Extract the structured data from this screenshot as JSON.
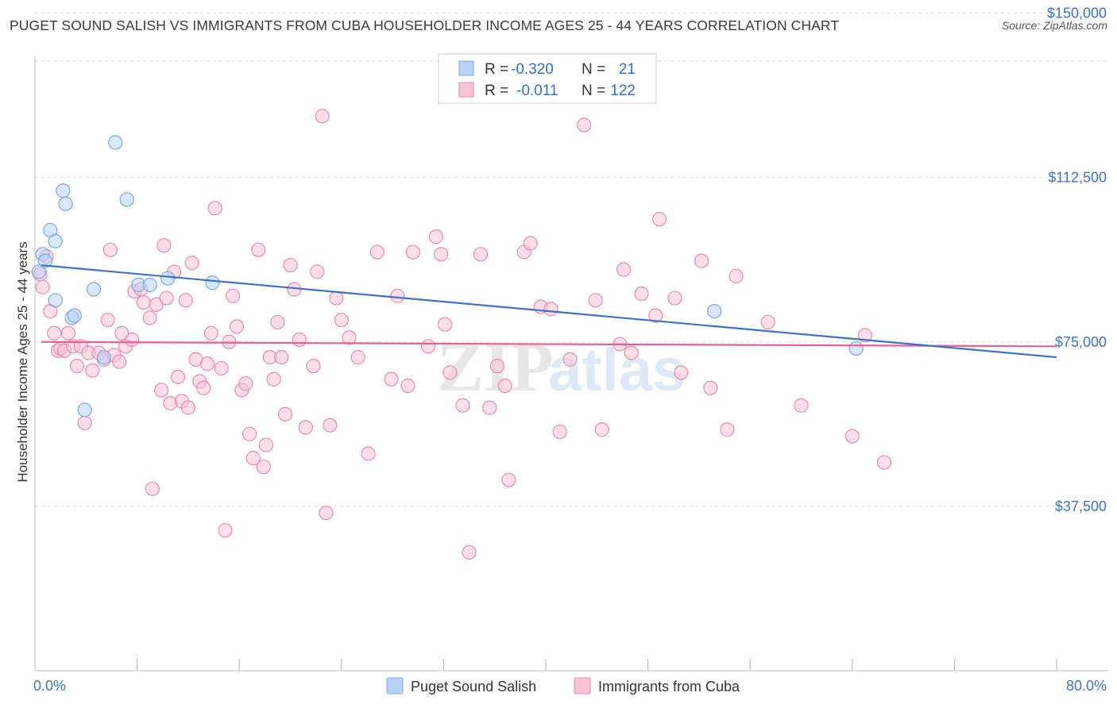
{
  "title": "PUGET SOUND SALISH VS IMMIGRANTS FROM CUBA HOUSEHOLDER INCOME AGES 25 - 44 YEARS CORRELATION CHART",
  "source": "Source: ZipAtlas.com",
  "watermark": {
    "part1": "ZIP",
    "part2": "atlas"
  },
  "colors": {
    "blue_fill": "#b9d3f5",
    "blue_stroke": "#7ca6e0",
    "blue_line": "#3a73c9",
    "pink_fill": "#f8c3d5",
    "pink_stroke": "#e98aab",
    "pink_line": "#e8608e",
    "axis_text": "#3b74c6",
    "grid": "#dddddd"
  },
  "legend": {
    "rows": [
      {
        "r_label": "R =",
        "r_value": "-0.320",
        "n_label": "N =",
        "n_value": "21"
      },
      {
        "r_label": "R =",
        "r_value": "-0.011",
        "n_label": "N =",
        "n_value": "122"
      }
    ]
  },
  "chart_data": {
    "type": "scatter",
    "xlabel": "",
    "ylabel": "Householder Income Ages 25 - 44 years",
    "xlim": [
      0,
      80
    ],
    "ylim": [
      0,
      153000
    ],
    "x_tick_labels": [
      "0.0%",
      "80.0%"
    ],
    "y_ticks": [
      37500,
      75000,
      112500,
      150000
    ],
    "y_tick_labels": [
      "$37,500",
      "$75,000",
      "$112,500",
      "$150,000"
    ],
    "grid": "horizontal dashed",
    "series": [
      {
        "name": "Puget Sound Salish",
        "color": "blue",
        "trend": {
          "x": [
            0.5,
            80
          ],
          "y": [
            92500,
            71500
          ]
        },
        "points": [
          [
            0.3,
            91000
          ],
          [
            0.6,
            95000
          ],
          [
            0.8,
            93500
          ],
          [
            1.2,
            100500
          ],
          [
            1.6,
            98000
          ],
          [
            1.6,
            84500
          ],
          [
            2.2,
            109500
          ],
          [
            2.4,
            106500
          ],
          [
            2.9,
            80500
          ],
          [
            3.1,
            81000
          ],
          [
            3.9,
            59500
          ],
          [
            4.6,
            87000
          ],
          [
            5.4,
            71500
          ],
          [
            6.3,
            120500
          ],
          [
            7.2,
            107500
          ],
          [
            8.1,
            88000
          ],
          [
            9.0,
            88000
          ],
          [
            10.4,
            89500
          ],
          [
            13.9,
            88500
          ],
          [
            53.2,
            82000
          ],
          [
            64.3,
            73500
          ]
        ]
      },
      {
        "name": "Immigrants from Cuba",
        "color": "pink",
        "trend": {
          "x": [
            0.5,
            80
          ],
          "y": [
            75000,
            74000
          ]
        },
        "points": [
          [
            0.4,
            90500
          ],
          [
            0.6,
            87500
          ],
          [
            0.9,
            94500
          ],
          [
            1.2,
            82000
          ],
          [
            1.5,
            77000
          ],
          [
            1.8,
            73000
          ],
          [
            2.0,
            73500
          ],
          [
            2.3,
            73000
          ],
          [
            2.6,
            77000
          ],
          [
            3.0,
            74000
          ],
          [
            3.3,
            69500
          ],
          [
            3.6,
            74000
          ],
          [
            3.9,
            56500
          ],
          [
            4.2,
            72500
          ],
          [
            4.5,
            68500
          ],
          [
            5.0,
            72500
          ],
          [
            5.4,
            71000
          ],
          [
            5.7,
            80000
          ],
          [
            5.9,
            96000
          ],
          [
            6.2,
            72000
          ],
          [
            6.6,
            70500
          ],
          [
            6.8,
            77000
          ],
          [
            7.1,
            74000
          ],
          [
            7.6,
            75500
          ],
          [
            7.8,
            86500
          ],
          [
            8.3,
            87000
          ],
          [
            8.5,
            84000
          ],
          [
            9.0,
            80500
          ],
          [
            9.2,
            41500
          ],
          [
            9.5,
            83500
          ],
          [
            9.9,
            64000
          ],
          [
            10.1,
            97000
          ],
          [
            10.3,
            85000
          ],
          [
            10.6,
            61000
          ],
          [
            10.9,
            91000
          ],
          [
            11.2,
            67000
          ],
          [
            11.5,
            61500
          ],
          [
            11.8,
            84500
          ],
          [
            12.0,
            60000
          ],
          [
            12.3,
            93000
          ],
          [
            12.6,
            71000
          ],
          [
            12.9,
            66000
          ],
          [
            13.2,
            64500
          ],
          [
            13.5,
            70000
          ],
          [
            13.8,
            77000
          ],
          [
            14.1,
            105500
          ],
          [
            14.6,
            69000
          ],
          [
            14.9,
            32000
          ],
          [
            15.2,
            75000
          ],
          [
            15.5,
            85500
          ],
          [
            15.8,
            78500
          ],
          [
            16.2,
            64000
          ],
          [
            16.5,
            65500
          ],
          [
            16.8,
            54000
          ],
          [
            17.1,
            48500
          ],
          [
            17.5,
            96000
          ],
          [
            17.9,
            46500
          ],
          [
            18.1,
            51500
          ],
          [
            18.4,
            71500
          ],
          [
            18.7,
            66500
          ],
          [
            19.0,
            79500
          ],
          [
            19.3,
            71500
          ],
          [
            19.6,
            58500
          ],
          [
            20.0,
            92500
          ],
          [
            20.3,
            87000
          ],
          [
            20.7,
            75500
          ],
          [
            21.2,
            55500
          ],
          [
            21.8,
            69500
          ],
          [
            22.1,
            91000
          ],
          [
            22.5,
            126500
          ],
          [
            22.8,
            36000
          ],
          [
            23.1,
            56000
          ],
          [
            23.6,
            85000
          ],
          [
            24.0,
            80000
          ],
          [
            24.6,
            76000
          ],
          [
            25.3,
            71500
          ],
          [
            26.1,
            49500
          ],
          [
            26.8,
            95500
          ],
          [
            27.9,
            66500
          ],
          [
            28.4,
            85500
          ],
          [
            29.2,
            65000
          ],
          [
            29.6,
            95500
          ],
          [
            30.8,
            74000
          ],
          [
            31.4,
            99000
          ],
          [
            31.8,
            95000
          ],
          [
            32.1,
            79000
          ],
          [
            32.5,
            68000
          ],
          [
            33.5,
            60500
          ],
          [
            34.0,
            27000
          ],
          [
            34.9,
            95000
          ],
          [
            35.6,
            60000
          ],
          [
            36.2,
            69500
          ],
          [
            36.8,
            65000
          ],
          [
            37.1,
            43500
          ],
          [
            38.3,
            95500
          ],
          [
            38.8,
            97500
          ],
          [
            39.6,
            83000
          ],
          [
            40.4,
            82500
          ],
          [
            41.1,
            54500
          ],
          [
            41.9,
            71000
          ],
          [
            43.0,
            124500
          ],
          [
            43.9,
            84500
          ],
          [
            44.4,
            55000
          ],
          [
            45.8,
            74500
          ],
          [
            46.1,
            91500
          ],
          [
            46.7,
            72500
          ],
          [
            47.5,
            86000
          ],
          [
            48.6,
            81000
          ],
          [
            48.9,
            103000
          ],
          [
            50.1,
            85000
          ],
          [
            50.6,
            68000
          ],
          [
            52.2,
            93500
          ],
          [
            52.9,
            64500
          ],
          [
            54.2,
            55000
          ],
          [
            54.9,
            90000
          ],
          [
            57.4,
            79500
          ],
          [
            60.0,
            60500
          ],
          [
            64.0,
            53500
          ],
          [
            65.0,
            76500
          ],
          [
            66.5,
            47500
          ]
        ]
      }
    ]
  },
  "bottom_legend": [
    "Puget Sound Salish",
    "Immigrants from Cuba"
  ]
}
